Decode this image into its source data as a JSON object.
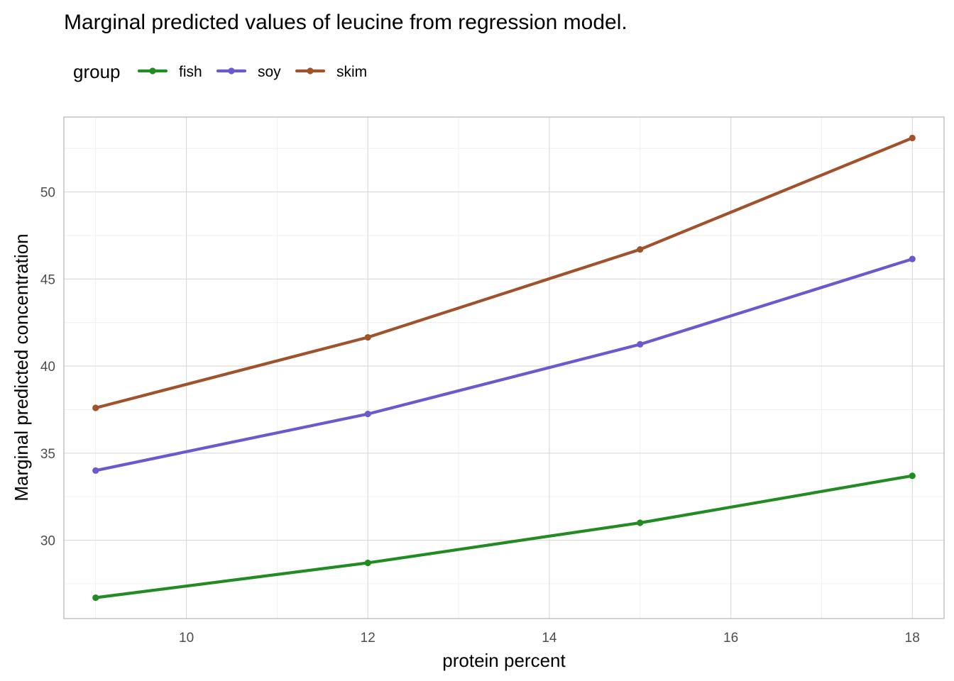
{
  "chart_data": {
    "type": "line",
    "title": "Marginal predicted values of leucine from regression model.",
    "xlabel": "protein percent",
    "ylabel": "Marginal predicted concentration",
    "legend": {
      "title": "group",
      "position": "top-left"
    },
    "x": [
      9,
      12,
      15,
      18
    ],
    "xlim": [
      8.65,
      18.35
    ],
    "ylim": [
      25.5,
      54.3
    ],
    "xticks": [
      10,
      12,
      14,
      16,
      18
    ],
    "yticks": [
      30,
      35,
      40,
      45,
      50
    ],
    "grid": true,
    "series": [
      {
        "name": "fish",
        "color": "#228B22",
        "values": [
          26.7,
          28.7,
          31.0,
          33.7
        ]
      },
      {
        "name": "soy",
        "color": "#6A5ACD",
        "values": [
          34.0,
          37.25,
          41.25,
          46.15
        ]
      },
      {
        "name": "skim",
        "color": "#A0522D",
        "values": [
          37.6,
          41.65,
          46.7,
          53.1
        ]
      }
    ]
  }
}
